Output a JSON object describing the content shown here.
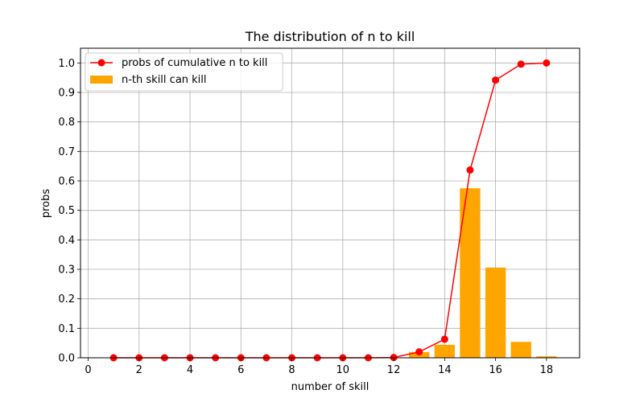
{
  "chart_data": {
    "type": "bar+line",
    "title": "The distribution of n to kill",
    "xlabel": "number of skill",
    "ylabel": "probs",
    "xlim": [
      -0.3,
      19.3
    ],
    "ylim": [
      0,
      1.05
    ],
    "xticks": [
      0,
      2,
      4,
      6,
      8,
      10,
      12,
      14,
      16,
      18
    ],
    "yticks": [
      0.0,
      0.1,
      0.2,
      0.3,
      0.4,
      0.5,
      0.6,
      0.7,
      0.8,
      0.9,
      1.0
    ],
    "grid": true,
    "legend_position": "top-left",
    "series": [
      {
        "name": "probs of cumulative n to kill",
        "type": "line",
        "color": "#ff0000",
        "marker": "circle",
        "x": [
          1,
          2,
          3,
          4,
          5,
          6,
          7,
          8,
          9,
          10,
          11,
          12,
          13,
          14,
          15,
          16,
          17,
          18
        ],
        "values": [
          0,
          0,
          0,
          0,
          0,
          0,
          0,
          0,
          0,
          0,
          0,
          0.001,
          0.02,
          0.063,
          0.637,
          0.942,
          0.996,
          1.0
        ]
      },
      {
        "name": "n-th skill can kill",
        "type": "bar",
        "color": "#ffa500",
        "x": [
          1,
          2,
          3,
          4,
          5,
          6,
          7,
          8,
          9,
          10,
          11,
          12,
          13,
          14,
          15,
          16,
          17,
          18
        ],
        "values": [
          0,
          0,
          0,
          0,
          0,
          0,
          0,
          0,
          0,
          0,
          0,
          0.001,
          0.019,
          0.044,
          0.575,
          0.306,
          0.054,
          0.005
        ]
      }
    ]
  }
}
